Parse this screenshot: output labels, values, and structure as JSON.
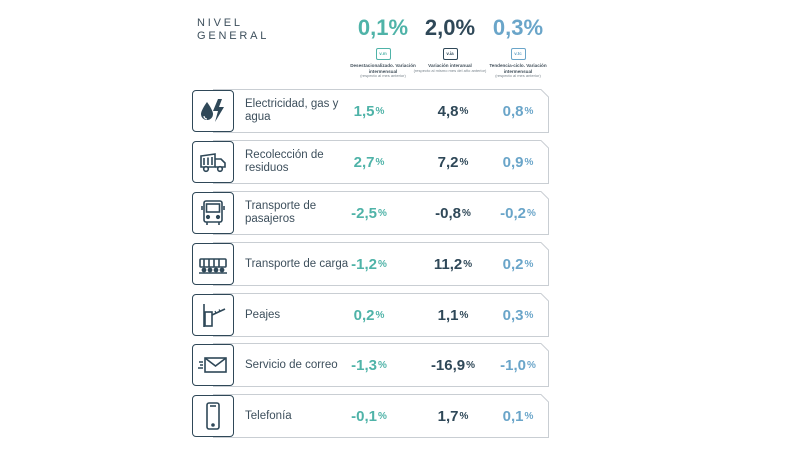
{
  "title": "NIVEL GENERAL",
  "headers": [
    {
      "value": "0,1%",
      "badge": "v.m",
      "label": "Desestacionalizado. Variación intermensual",
      "sub": "(respecto al mes anterior)"
    },
    {
      "value": "2,0%",
      "badge": "v.ia",
      "label": "Variación interanual",
      "sub": "(respecto al mismo mes del año anterior)"
    },
    {
      "value": "0,3%",
      "badge": "v.tc",
      "label": "Tendencia-ciclo. Variación intermensual",
      "sub": "(respecto al mes anterior)"
    }
  ],
  "rows": [
    {
      "icon": "water-electricity-icon",
      "label": "Electricidad, gas y agua",
      "v1": "1,5",
      "v2": "4,8",
      "v3": "0,8"
    },
    {
      "icon": "garbage-truck-icon",
      "label": "Recolección de residuos",
      "v1": "2,7",
      "v2": "7,2",
      "v3": "0,9"
    },
    {
      "icon": "bus-icon",
      "label": "Transporte de pasajeros",
      "v1": "-2,5",
      "v2": "-0,8",
      "v3": "-0,2"
    },
    {
      "icon": "freight-train-icon",
      "label": "Transporte de carga",
      "v1": "-1,2",
      "v2": "11,2",
      "v3": "0,2"
    },
    {
      "icon": "toll-barrier-icon",
      "label": "Peajes",
      "v1": "0,2",
      "v2": "1,1",
      "v3": "0,3"
    },
    {
      "icon": "mail-envelope-icon",
      "label": "Servicio de correo",
      "v1": "-1,3",
      "v2": "-16,9",
      "v3": "-1,0"
    },
    {
      "icon": "mobile-phone-icon",
      "label": "Telefonía",
      "v1": "-0,1",
      "v2": "1,7",
      "v3": "0,1"
    }
  ],
  "percent_sign": "%",
  "colors": {
    "col1": "#4fb3a8",
    "col2": "#2f4858",
    "col3": "#6aa5c9",
    "frame": "#c9ced3"
  }
}
